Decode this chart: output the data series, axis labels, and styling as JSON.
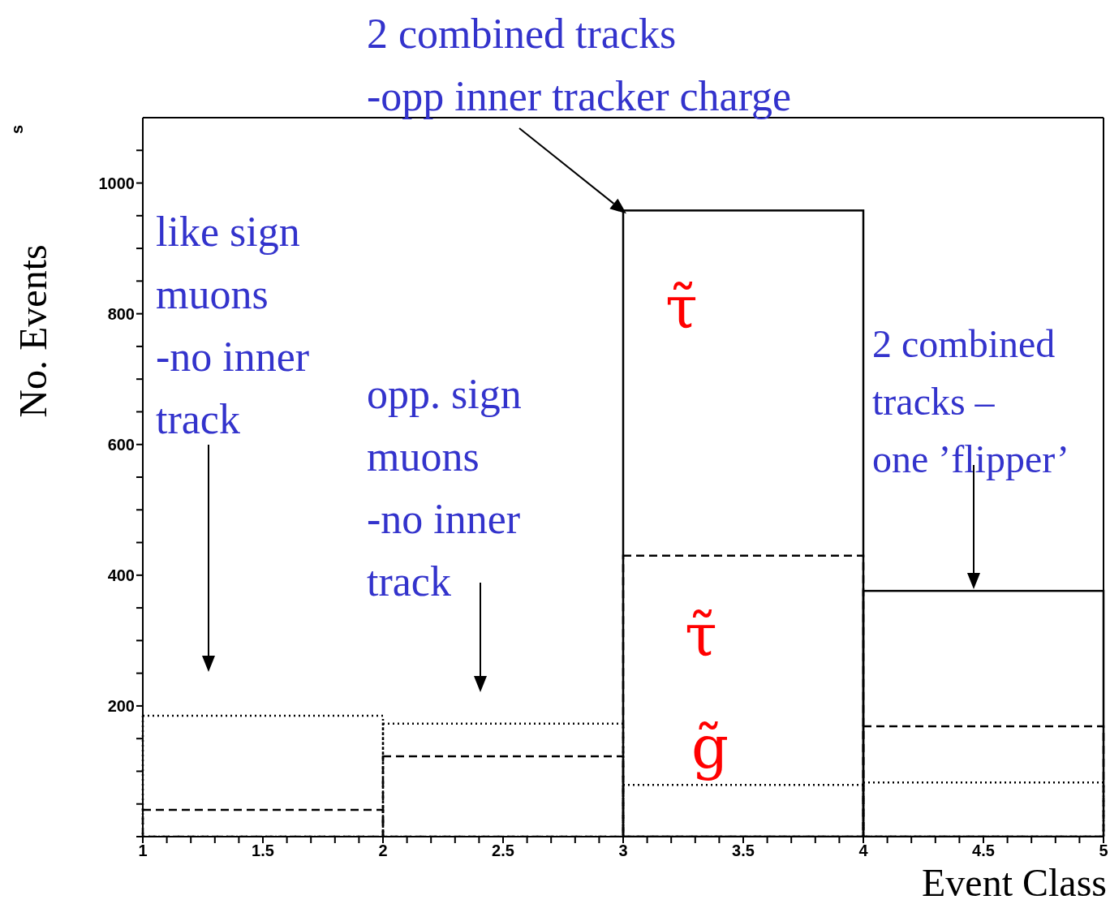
{
  "chart_data": {
    "type": "histogram",
    "xlabel": "Event Class",
    "ylabel": "No. Events",
    "bins": [
      1,
      2,
      3,
      4,
      5
    ],
    "series": [
      {
        "color": "#000000",
        "line_style": "solid",
        "values": [
          0,
          0,
          958,
          376
        ]
      },
      {
        "color": "#000000",
        "line_style": "dashed",
        "values": [
          41,
          123,
          430,
          169
        ]
      },
      {
        "color": "#000000",
        "line_style": "dotted",
        "values": [
          185,
          173,
          79,
          83
        ]
      }
    ],
    "xlim": [
      1,
      5
    ],
    "xticks": [
      1,
      {
        "value": 1.1,
        "label": null
      },
      {
        "value": 1.2,
        "label": null
      },
      {
        "value": 1.3,
        "label": null
      },
      {
        "value": 1.4,
        "label": null
      },
      1.5,
      {
        "value": 1.6,
        "label": null
      },
      {
        "value": 1.7,
        "label": null
      },
      {
        "value": 1.8,
        "label": null
      },
      {
        "value": 1.9,
        "label": null
      },
      2,
      {
        "value": 2.1,
        "label": null
      },
      {
        "value": 2.2,
        "label": null
      },
      {
        "value": 2.3,
        "label": null
      },
      {
        "value": 2.4,
        "label": null
      },
      2.5,
      {
        "value": 2.6,
        "label": null
      },
      {
        "value": 2.7,
        "label": null
      },
      {
        "value": 2.8,
        "label": null
      },
      {
        "value": 2.9,
        "label": null
      },
      3,
      {
        "value": 3.1,
        "label": null
      },
      {
        "value": 3.2,
        "label": null
      },
      {
        "value": 3.3,
        "label": null
      },
      {
        "value": 3.4,
        "label": null
      },
      3.5,
      {
        "value": 3.6,
        "label": null
      },
      {
        "value": 3.7,
        "label": null
      },
      {
        "value": 3.8,
        "label": null
      },
      {
        "value": 3.9,
        "label": null
      },
      4,
      {
        "value": 4.1,
        "label": null
      },
      {
        "value": 4.2,
        "label": null
      },
      {
        "value": 4.3,
        "label": null
      },
      {
        "value": 4.4,
        "label": null
      },
      4.5,
      {
        "value": 4.6,
        "label": null
      },
      {
        "value": 4.7,
        "label": null
      },
      {
        "value": 4.8,
        "label": null
      },
      {
        "value": 4.9,
        "label": null
      },
      5
    ],
    "ylim": [
      0,
      1100
    ],
    "yticks": [
      {
        "value": 0,
        "label": null
      },
      {
        "value": 50,
        "label": null
      },
      {
        "value": 100,
        "label": null
      },
      {
        "value": 150,
        "label": null
      },
      200,
      {
        "value": 250,
        "label": null
      },
      {
        "value": 300,
        "label": null
      },
      {
        "value": 350,
        "label": null
      },
      400,
      {
        "value": 450,
        "label": null
      },
      {
        "value": 500,
        "label": null
      },
      {
        "value": 550,
        "label": null
      },
      600,
      {
        "value": 650,
        "label": null
      },
      {
        "value": 700,
        "label": null
      },
      {
        "value": 750,
        "label": null
      },
      800,
      {
        "value": 850,
        "label": null
      },
      {
        "value": 900,
        "label": null
      },
      {
        "value": 950,
        "label": null
      },
      1000,
      {
        "value": 1050,
        "label": null
      }
    ],
    "annotations": [
      {
        "text": "2 combined tracks\n-opp inner tracker charge",
        "x": 3,
        "y": 958
      },
      "like sign\nmuons\n-no inner\ntrack",
      "opp. sign\nmuons\n-no inner\ntrack",
      "2 combined\ntracks –\none ’flipper’",
      "τ̃",
      "τ̃",
      "g̃",
      "s"
    ]
  }
}
